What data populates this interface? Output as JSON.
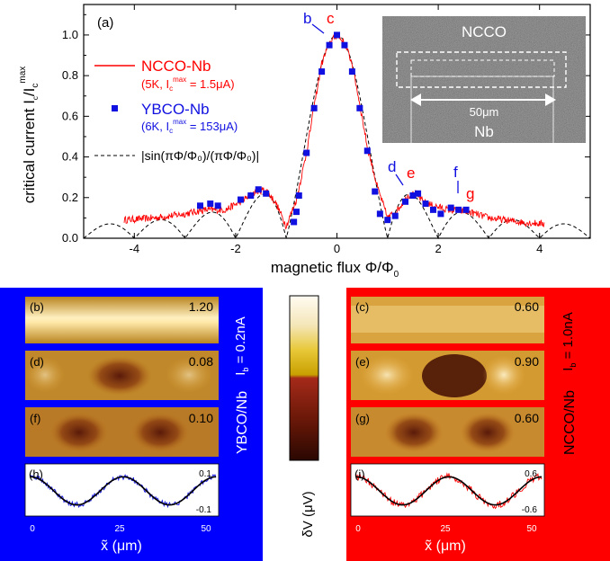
{
  "main_panel": {
    "panel_label": "(a)",
    "xlabel": "magnetic flux Φ/Φ",
    "xlabel_sub": "0",
    "ylabel": "critical current I",
    "ylabel_sub1": "c",
    "ylabel_mid": "/I",
    "ylabel_sub2": "c",
    "ylabel_sup": "max",
    "x_ticks": [
      "-4",
      "-2",
      "0",
      "2",
      "4"
    ],
    "y_ticks": [
      "0.0",
      "0.2",
      "0.4",
      "0.6",
      "0.8",
      "1.0"
    ],
    "legend": {
      "ncco_name": "NCCO-Nb",
      "ncco_detail_pre": "(5K, I",
      "ncco_detail_sub": "c",
      "ncco_detail_sup": "max",
      "ncco_detail_post": " = 1.5μA)",
      "ybco_name": "YBCO-Nb",
      "ybco_detail_pre": "(6K, I",
      "ybco_detail_sub": "c",
      "ybco_detail_sup": "max",
      "ybco_detail_post": " = 153μA)",
      "fraunhofer": "|sin(πΦ/Φ₀)/(πΦ/Φ₀)|"
    },
    "point_labels": [
      "b",
      "c",
      "d",
      "e",
      "f",
      "g"
    ],
    "inset": {
      "top_label": "NCCO",
      "scale_label": "50μm",
      "bottom_label": "Nb"
    }
  },
  "chart_data": {
    "type": "line",
    "xlabel": "magnetic flux Φ/Φ₀",
    "ylabel": "critical current Ic/Ic^max",
    "xlim": [
      -5,
      5
    ],
    "ylim": [
      0,
      1.15
    ],
    "series": [
      {
        "name": "NCCO-Nb",
        "color": "#ff0000",
        "x": [
          -4.2,
          -3.6,
          -3.0,
          -2.6,
          -2.2,
          -1.9,
          -1.6,
          -1.4,
          -1.2,
          -1.0,
          -0.8,
          -0.6,
          -0.45,
          -0.3,
          -0.15,
          0.0,
          0.15,
          0.3,
          0.45,
          0.6,
          0.8,
          1.0,
          1.2,
          1.4,
          1.55,
          1.7,
          1.9,
          2.2,
          2.6,
          3.0,
          3.6,
          4.1
        ],
        "y": [
          0.09,
          0.1,
          0.12,
          0.14,
          0.14,
          0.18,
          0.23,
          0.24,
          0.17,
          0.06,
          0.19,
          0.42,
          0.65,
          0.86,
          0.96,
          1.0,
          0.96,
          0.86,
          0.66,
          0.45,
          0.25,
          0.1,
          0.14,
          0.21,
          0.22,
          0.18,
          0.16,
          0.14,
          0.13,
          0.1,
          0.08,
          0.07
        ]
      },
      {
        "name": "YBCO-Nb",
        "color": "#1010e0",
        "x": [
          -2.7,
          -2.5,
          -2.35,
          -1.9,
          -1.7,
          -1.55,
          -1.4,
          -0.85,
          -0.8,
          -0.75,
          -0.6,
          -0.45,
          -0.3,
          -0.15,
          0.0,
          0.15,
          0.3,
          0.45,
          0.6,
          0.75,
          0.85,
          1.0,
          1.15,
          1.35,
          1.5,
          1.6,
          1.75,
          1.9,
          2.05,
          2.25,
          2.4,
          2.55
        ],
        "y": [
          0.16,
          0.17,
          0.16,
          0.19,
          0.21,
          0.24,
          0.22,
          0.08,
          0.13,
          0.21,
          0.42,
          0.64,
          0.82,
          0.95,
          1.0,
          0.95,
          0.82,
          0.64,
          0.43,
          0.23,
          0.12,
          0.09,
          0.11,
          0.18,
          0.21,
          0.22,
          0.17,
          0.14,
          0.12,
          0.15,
          0.14,
          0.14
        ]
      },
      {
        "name": "|sin(πΦ/Φ₀)/(πΦ/Φ₀)|",
        "color": "#000000",
        "style": "dashed",
        "function": "abs(sinc(x))",
        "x_range": [
          -5,
          5
        ]
      }
    ]
  },
  "bottom_panels": {
    "ybco": {
      "side_label": "YBCO/Nb",
      "current_label": "I",
      "current_sub": "b",
      "current_value": " = 0.2nA",
      "images": [
        {
          "label": "(b)",
          "value": "1.20"
        },
        {
          "label": "(d)",
          "value": "0.08"
        },
        {
          "label": "(f)",
          "value": "0.10"
        }
      ],
      "profile_label": "(h)",
      "profile_top": "0.1",
      "profile_bottom": "-0.1",
      "x_ticks": [
        "0",
        "25",
        "50"
      ],
      "xlabel": "x̃ (μm)",
      "background": "#0000ff"
    },
    "colorbar_label": "δV (μV)",
    "ncco": {
      "side_label": "NCCO/Nb",
      "current_label": "I",
      "current_sub": "b",
      "current_value": " = 1.0nA",
      "images": [
        {
          "label": "(c)",
          "value": "0.60"
        },
        {
          "label": "(e)",
          "value": "0.90"
        },
        {
          "label": "(g)",
          "value": "0.60"
        }
      ],
      "profile_label": "(i)",
      "profile_top": "0.6",
      "profile_bottom": "-0.6",
      "x_ticks": [
        "0",
        "25",
        "50"
      ],
      "xlabel": "x̃ (μm)",
      "background": "#ff0000"
    }
  }
}
